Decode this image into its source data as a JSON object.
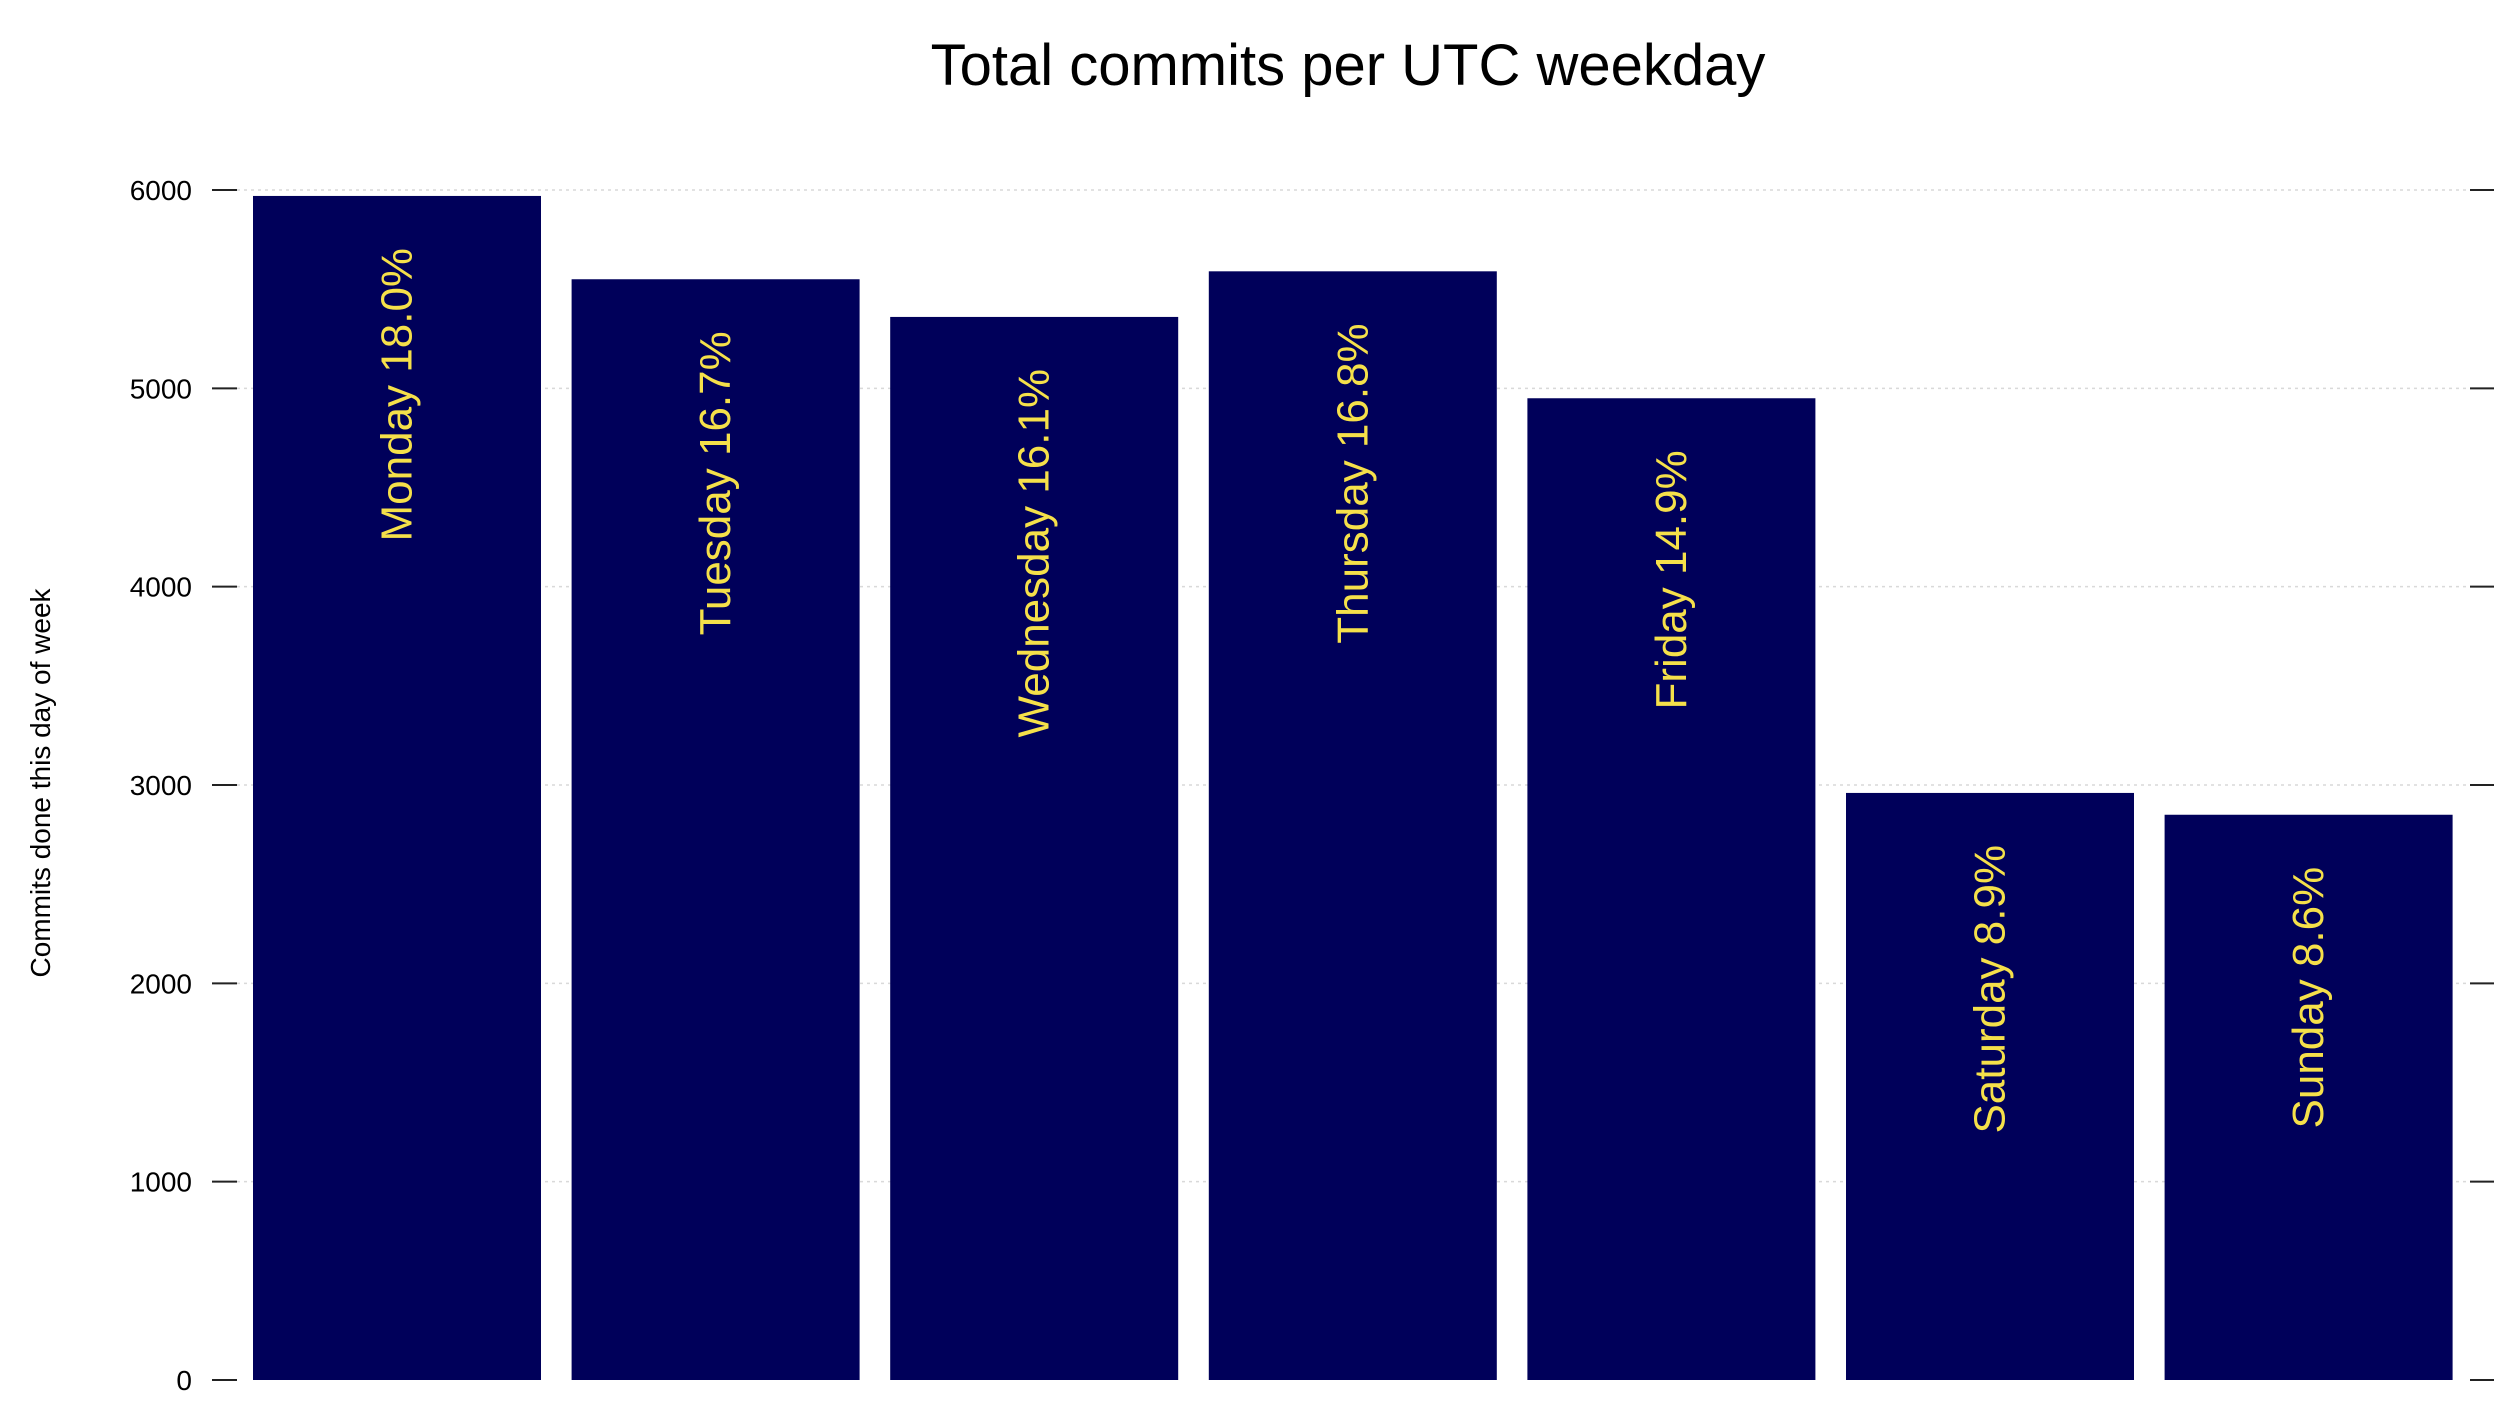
{
  "chart_data": {
    "type": "bar",
    "title": "Total commits per UTC weekday",
    "xlabel": "",
    "ylabel": "Commits done this day of week",
    "categories": [
      "Monday",
      "Tuesday",
      "Wednesday",
      "Thursday",
      "Friday",
      "Saturday",
      "Sunday"
    ],
    "values": [
      5970,
      5550,
      5360,
      5590,
      4950,
      2960,
      2850
    ],
    "bar_labels": [
      "Monday 18.0%",
      "Tuesday 16.7%",
      "Wednesday 16.1%",
      "Thursday 16.8%",
      "Friday 14.9%",
      "Saturday 8.9%",
      "Sunday 8.6%"
    ],
    "ylim": [
      0,
      6000
    ],
    "yticks": [
      0,
      1000,
      2000,
      3000,
      4000,
      5000,
      6000
    ],
    "ytick_labels": [
      "0",
      "1000",
      "2000",
      "3000",
      "4000",
      "5000",
      "6000"
    ],
    "grid": true,
    "legend": "none",
    "colors": {
      "bar": "#00005a",
      "bar_label": "#f5e04a",
      "grid": "#d9d9d9",
      "axis": "#222222",
      "text": "#000000"
    }
  }
}
